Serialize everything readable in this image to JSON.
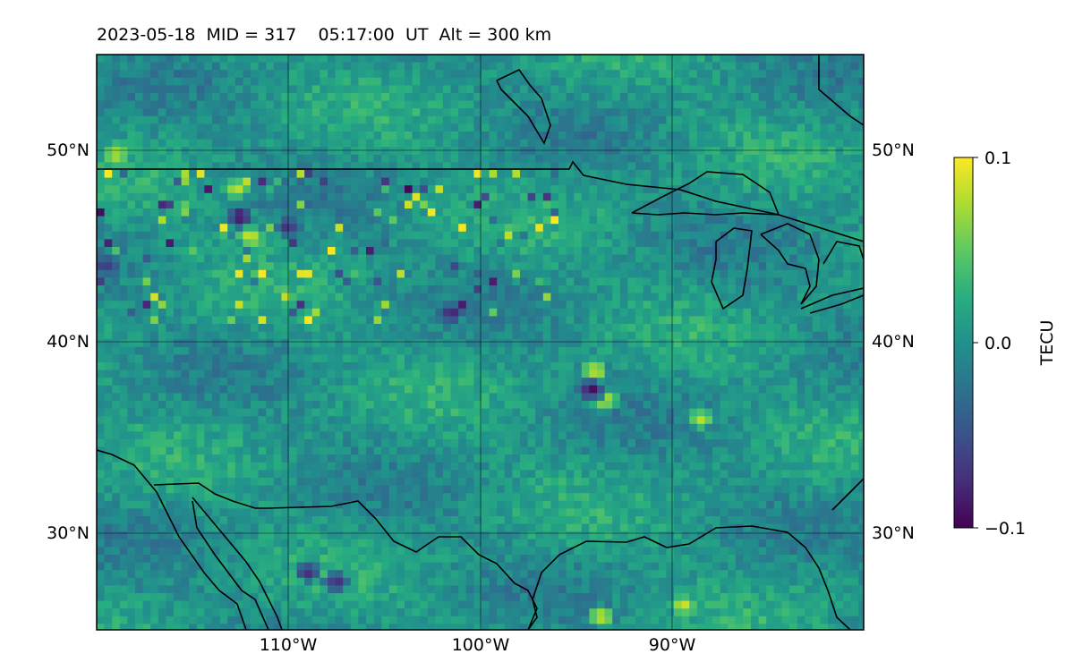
{
  "title": "2023-05-18  MID = 317    05:17:00  UT  Alt = 300 km",
  "chart_data": {
    "type": "heatmap",
    "title": "2023-05-18  MID = 317    05:17:00  UT  Alt = 300 km",
    "projection": "map (North America, lat/lon)",
    "xlim": [
      -120,
      -80
    ],
    "ylim": [
      25,
      55
    ],
    "x_ticks": [
      -110,
      -100,
      -90
    ],
    "x_tick_labels": [
      "110°W",
      "100°W",
      "90°W"
    ],
    "y_ticks": [
      30,
      40,
      50
    ],
    "y_tick_labels_left": [
      "30°N",
      "40°N",
      "50°N"
    ],
    "y_tick_labels_right": [
      "30°N",
      "40°N",
      "50°N"
    ],
    "grid": true,
    "colormap": "viridis",
    "colorbar": {
      "label": "TECU",
      "range": [
        -0.1,
        0.1
      ],
      "ticks": [
        0.1,
        0.0,
        -0.1
      ],
      "tick_labels": [
        "0.1",
        "0.0",
        "−0.1"
      ]
    },
    "features": {
      "blobs": [
        {
          "lat": 46.5,
          "lon": -112.5,
          "value": -0.1
        },
        {
          "lat": 45.5,
          "lon": -112.0,
          "value": 0.1
        },
        {
          "lat": 46.0,
          "lon": -110.0,
          "value": -0.08
        },
        {
          "lat": 48.0,
          "lon": -112.7,
          "value": 0.09
        },
        {
          "lat": 41.5,
          "lon": -101.5,
          "value": -0.09
        },
        {
          "lat": 38.5,
          "lon": -94.0,
          "value": 0.1
        },
        {
          "lat": 37.0,
          "lon": -93.5,
          "value": 0.1
        },
        {
          "lat": 37.5,
          "lon": -94.2,
          "value": -0.1
        },
        {
          "lat": 36.0,
          "lon": -88.5,
          "value": 0.09
        },
        {
          "lat": 28.0,
          "lon": -109.0,
          "value": -0.09
        },
        {
          "lat": 27.5,
          "lon": -107.5,
          "value": -0.09
        },
        {
          "lat": 25.7,
          "lon": -93.7,
          "value": 0.1
        },
        {
          "lat": 26.3,
          "lon": -89.4,
          "value": 0.09
        },
        {
          "lat": 44.0,
          "lon": -119.5,
          "value": -0.08
        },
        {
          "lat": 49.8,
          "lon": -119.0,
          "value": 0.09
        }
      ]
    }
  }
}
